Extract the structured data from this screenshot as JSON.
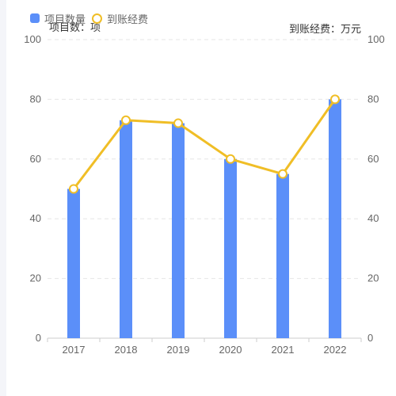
{
  "legend": {
    "bar_label": "项目数量",
    "line_label": "到账经费"
  },
  "axis_units": {
    "left": "项目数：项",
    "right": "到账经费：万元"
  },
  "colors": {
    "bar": "#5b8ff9",
    "line": "#f0be26",
    "grid": "#e6e6e6",
    "axis": "#cccccc",
    "tick_text": "#666666"
  },
  "chart_data": {
    "type": "bar",
    "categories": [
      "2017",
      "2018",
      "2019",
      "2020",
      "2021",
      "2022"
    ],
    "series": [
      {
        "name": "项目数量",
        "type": "bar",
        "axis": "left",
        "values": [
          50,
          73,
          72,
          60,
          55,
          80
        ]
      },
      {
        "name": "到账经费",
        "type": "line",
        "axis": "right",
        "values": [
          50,
          73,
          72,
          60,
          55,
          80
        ]
      }
    ],
    "yticks": [
      0,
      20,
      40,
      60,
      80,
      100
    ],
    "ylim_left": [
      0,
      100
    ],
    "ylim_right": [
      0,
      100
    ],
    "grid": true,
    "legend_position": "top-left"
  }
}
